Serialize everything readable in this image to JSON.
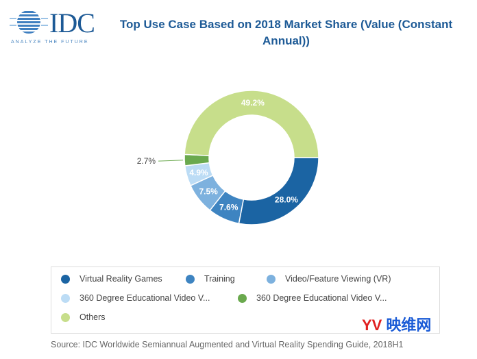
{
  "header": {
    "logo_text": "IDC",
    "logo_tagline": "ANALYZE THE FUTURE",
    "title": "Top Use Case Based on 2018 Market Share (Value (Constant Annual))"
  },
  "chart_data": {
    "type": "pie",
    "donut": true,
    "title": "Top Use Case Based on 2018 Market Share (Value (Constant Annual))",
    "categories": [
      "Virtual Reality Games",
      "Training",
      "Video/Feature Viewing (VR)",
      "360 Degree Educational Video V...",
      "360 Degree Educational Video V...",
      "Others"
    ],
    "values": [
      28.0,
      7.6,
      7.5,
      4.9,
      2.7,
      49.2
    ],
    "labels": [
      "28.0%",
      "7.6%",
      "7.5%",
      "4.9%",
      "2.7%",
      "49.2%"
    ],
    "colors": [
      "#1b64a3",
      "#3e84c1",
      "#7db1de",
      "#bcdcf5",
      "#6aa94e",
      "#c7de8b"
    ],
    "legend": "bottom"
  },
  "footer": {
    "source": "Source: IDC Worldwide Semiannual Augmented and Virtual Reality Spending Guide, 2018H1",
    "watermark_mark": "YV",
    "watermark_text": "映维网"
  }
}
